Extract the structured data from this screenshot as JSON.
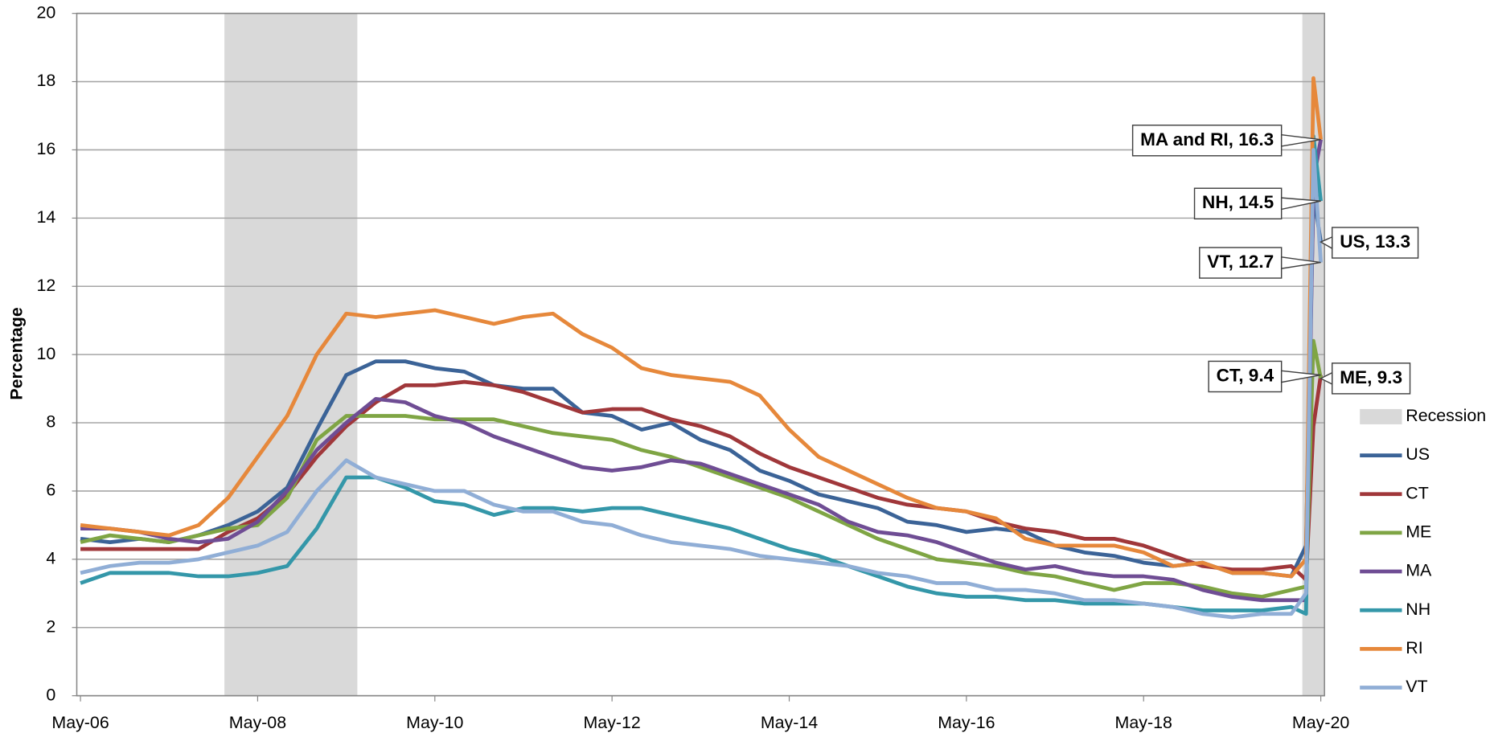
{
  "chart_data": {
    "type": "line",
    "y_label": "Percentage",
    "xlim": [
      -0.5,
      168.5
    ],
    "xticks": [
      {
        "value": 0,
        "label": "May-06"
      },
      {
        "value": 24,
        "label": "May-08"
      },
      {
        "value": 48,
        "label": "May-10"
      },
      {
        "value": 72,
        "label": "May-12"
      },
      {
        "value": 96,
        "label": "May-14"
      },
      {
        "value": 120,
        "label": "May-16"
      },
      {
        "value": 144,
        "label": "May-18"
      },
      {
        "value": 168,
        "label": "May-20"
      }
    ],
    "ylim": [
      0,
      20
    ],
    "yticks": [
      0,
      2,
      4,
      6,
      8,
      10,
      12,
      14,
      16,
      18,
      20
    ],
    "grid": true,
    "legend": "right",
    "recession_label": "Recession",
    "recession_color": "#d9d9d9",
    "recessions": [
      [
        19.5,
        37.5
      ],
      [
        165.5,
        168.5
      ]
    ],
    "x": [
      0,
      4,
      8,
      12,
      16,
      20,
      24,
      28,
      32,
      36,
      40,
      44,
      48,
      52,
      56,
      60,
      64,
      68,
      72,
      76,
      80,
      84,
      88,
      92,
      96,
      100,
      104,
      108,
      112,
      116,
      120,
      124,
      128,
      132,
      136,
      140,
      144,
      148,
      152,
      156,
      160,
      164,
      166,
      167,
      168
    ],
    "series": [
      {
        "name": "US",
        "color": "#3b6397",
        "values": [
          4.6,
          4.5,
          4.6,
          4.5,
          4.7,
          5.0,
          5.4,
          6.1,
          7.8,
          9.4,
          9.8,
          9.8,
          9.6,
          9.5,
          9.1,
          9.0,
          9.0,
          8.3,
          8.2,
          7.8,
          8.0,
          7.5,
          7.2,
          6.6,
          6.3,
          5.9,
          5.7,
          5.5,
          5.1,
          5.0,
          4.8,
          4.9,
          4.8,
          4.4,
          4.2,
          4.1,
          3.9,
          3.8,
          3.9,
          3.6,
          3.6,
          3.5,
          4.4,
          14.7,
          13.3
        ]
      },
      {
        "name": "CT",
        "color": "#a0373a",
        "values": [
          4.3,
          4.3,
          4.3,
          4.3,
          4.3,
          4.8,
          5.2,
          5.9,
          7.0,
          7.9,
          8.6,
          9.1,
          9.1,
          9.2,
          9.1,
          8.9,
          8.6,
          8.3,
          8.4,
          8.4,
          8.1,
          7.9,
          7.6,
          7.1,
          6.7,
          6.4,
          6.1,
          5.8,
          5.6,
          5.5,
          5.4,
          5.1,
          4.9,
          4.8,
          4.6,
          4.6,
          4.4,
          4.1,
          3.8,
          3.7,
          3.7,
          3.8,
          3.4,
          7.9,
          9.4
        ]
      },
      {
        "name": "ME",
        "color": "#7fa544",
        "values": [
          4.5,
          4.7,
          4.6,
          4.5,
          4.7,
          4.9,
          5.0,
          5.8,
          7.5,
          8.2,
          8.2,
          8.2,
          8.1,
          8.1,
          8.1,
          7.9,
          7.7,
          7.6,
          7.5,
          7.2,
          7.0,
          6.7,
          6.4,
          6.1,
          5.8,
          5.4,
          5.0,
          4.6,
          4.3,
          4.0,
          3.9,
          3.8,
          3.6,
          3.5,
          3.3,
          3.1,
          3.3,
          3.3,
          3.2,
          3.0,
          2.9,
          3.1,
          3.2,
          10.4,
          9.3
        ]
      },
      {
        "name": "MA",
        "color": "#6f4d94",
        "values": [
          4.9,
          4.9,
          4.8,
          4.6,
          4.5,
          4.6,
          5.1,
          6.0,
          7.2,
          8.0,
          8.7,
          8.6,
          8.2,
          8.0,
          7.6,
          7.3,
          7.0,
          6.7,
          6.6,
          6.7,
          6.9,
          6.8,
          6.5,
          6.2,
          5.9,
          5.6,
          5.1,
          4.8,
          4.7,
          4.5,
          4.2,
          3.9,
          3.7,
          3.8,
          3.6,
          3.5,
          3.5,
          3.4,
          3.1,
          2.9,
          2.8,
          2.8,
          2.8,
          15.1,
          16.3
        ]
      },
      {
        "name": "NH",
        "color": "#3497a9",
        "values": [
          3.3,
          3.6,
          3.6,
          3.6,
          3.5,
          3.5,
          3.6,
          3.8,
          4.9,
          6.4,
          6.4,
          6.1,
          5.7,
          5.6,
          5.3,
          5.5,
          5.5,
          5.4,
          5.5,
          5.5,
          5.3,
          5.1,
          4.9,
          4.6,
          4.3,
          4.1,
          3.8,
          3.5,
          3.2,
          3.0,
          2.9,
          2.9,
          2.8,
          2.8,
          2.7,
          2.7,
          2.7,
          2.6,
          2.5,
          2.5,
          2.5,
          2.6,
          2.4,
          16.4,
          14.5
        ]
      },
      {
        "name": "RI",
        "color": "#e6883b",
        "values": [
          5.0,
          4.9,
          4.8,
          4.7,
          5.0,
          5.8,
          7.0,
          8.2,
          10.0,
          11.2,
          11.1,
          11.2,
          11.3,
          11.1,
          10.9,
          11.1,
          11.2,
          10.6,
          10.2,
          9.6,
          9.4,
          9.3,
          9.2,
          8.8,
          7.8,
          7.0,
          6.6,
          6.2,
          5.8,
          5.5,
          5.4,
          5.2,
          4.6,
          4.4,
          4.4,
          4.4,
          4.2,
          3.8,
          3.9,
          3.6,
          3.6,
          3.5,
          4.0,
          18.1,
          16.3
        ]
      },
      {
        "name": "VT",
        "color": "#90aed6",
        "values": [
          3.6,
          3.8,
          3.9,
          3.9,
          4.0,
          4.2,
          4.4,
          4.8,
          6.0,
          6.9,
          6.4,
          6.2,
          6.0,
          6.0,
          5.6,
          5.4,
          5.4,
          5.1,
          5.0,
          4.7,
          4.5,
          4.4,
          4.3,
          4.1,
          4.0,
          3.9,
          3.8,
          3.6,
          3.5,
          3.3,
          3.3,
          3.1,
          3.1,
          3.0,
          2.8,
          2.8,
          2.7,
          2.6,
          2.4,
          2.3,
          2.4,
          2.4,
          3.0,
          16.0,
          12.7
        ]
      }
    ],
    "annotations": [
      {
        "text": "MA and RI, 16.3",
        "value": 16.3
      },
      {
        "text": "NH, 14.5",
        "value": 14.5
      },
      {
        "text": "US, 13.3",
        "value": 13.3
      },
      {
        "text": "VT, 12.7",
        "value": 12.7
      },
      {
        "text": "CT, 9.4",
        "value": 9.4
      },
      {
        "text": "ME, 9.3",
        "value": 9.3
      }
    ]
  }
}
